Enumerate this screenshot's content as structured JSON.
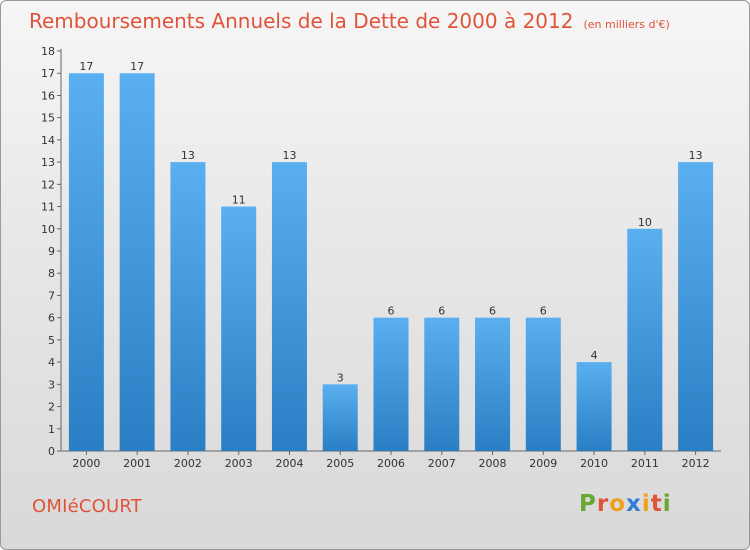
{
  "chart_data": {
    "type": "bar",
    "title": "Remboursements Annuels de la Dette de 2000 à 2012",
    "unit_note": "(en milliers d'€)",
    "categories": [
      "2000",
      "2001",
      "2002",
      "2003",
      "2004",
      "2005",
      "2006",
      "2007",
      "2008",
      "2009",
      "2010",
      "2011",
      "2012"
    ],
    "values": [
      17,
      17,
      13,
      11,
      13,
      3,
      6,
      6,
      6,
      6,
      4,
      10,
      13
    ],
    "ylim": [
      0,
      18
    ],
    "yticks": [
      0,
      1,
      2,
      3,
      4,
      5,
      6,
      7,
      8,
      9,
      10,
      11,
      12,
      13,
      14,
      15,
      16,
      17,
      18
    ],
    "grid": false,
    "bar_color": "#3d8fd6",
    "bar_color_light": "#5aaff0"
  },
  "footer": {
    "commune": "OMIéCOURT",
    "brand": [
      "P",
      "r",
      "o",
      "x",
      "i",
      "t",
      "i"
    ],
    "brand_colors": [
      "#6aa832",
      "#e0533a",
      "#f0a020",
      "#2f7fd8",
      "#f0a020",
      "#e0533a",
      "#6aa832"
    ]
  },
  "colors": {
    "title": "#e0533a",
    "commune": "#e0533a"
  }
}
